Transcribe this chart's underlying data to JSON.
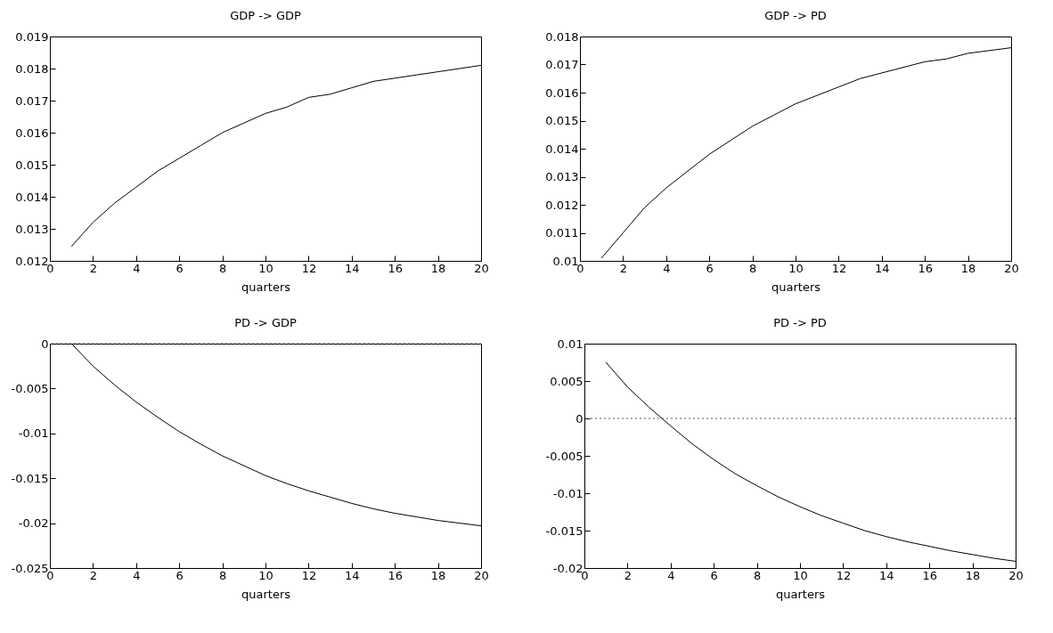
{
  "chart_data": [
    {
      "type": "line",
      "title": "GDP -> GDP",
      "xlabel": "quarters",
      "x": [
        1,
        2,
        3,
        4,
        5,
        6,
        7,
        8,
        9,
        10,
        11,
        12,
        13,
        14,
        15,
        16,
        17,
        18,
        19,
        20
      ],
      "series": [
        {
          "color": "#000000",
          "values": [
            0.01245,
            0.0132,
            0.0138,
            0.0143,
            0.0148,
            0.0152,
            0.0156,
            0.016,
            0.0163,
            0.0166,
            0.0168,
            0.0171,
            0.0172,
            0.0174,
            0.0176,
            0.0177,
            0.0178,
            0.0179,
            0.018,
            0.0181
          ]
        }
      ],
      "xlim": [
        0,
        20
      ],
      "xticks": [
        0,
        2,
        4,
        6,
        8,
        10,
        12,
        14,
        16,
        18,
        20
      ],
      "ylim": [
        0.012,
        0.019
      ],
      "yticks": [
        0.012,
        0.013,
        0.014,
        0.015,
        0.016,
        0.017,
        0.018,
        0.019
      ],
      "grid": false,
      "line_style": "solid"
    },
    {
      "type": "line",
      "title": "GDP -> PD",
      "xlabel": "quarters",
      "x": [
        1,
        2,
        3,
        4,
        5,
        6,
        7,
        8,
        9,
        10,
        11,
        12,
        13,
        14,
        15,
        16,
        17,
        18,
        19,
        20
      ],
      "series": [
        {
          "color": "#000000",
          "values": [
            0.0101,
            0.011,
            0.0119,
            0.0126,
            0.0132,
            0.0138,
            0.0143,
            0.0148,
            0.0152,
            0.0156,
            0.0159,
            0.0162,
            0.0165,
            0.0167,
            0.0169,
            0.0171,
            0.0172,
            0.0174,
            0.0175,
            0.0176
          ]
        }
      ],
      "xlim": [
        0,
        20
      ],
      "xticks": [
        0,
        2,
        4,
        6,
        8,
        10,
        12,
        14,
        16,
        18,
        20
      ],
      "ylim": [
        0.01,
        0.018
      ],
      "yticks": [
        0.01,
        0.011,
        0.012,
        0.013,
        0.014,
        0.015,
        0.016,
        0.017,
        0.018
      ],
      "grid": false,
      "line_style": "solid"
    },
    {
      "type": "line",
      "title": "PD -> GDP",
      "xlabel": "quarters",
      "x": [
        1,
        2,
        3,
        4,
        5,
        6,
        7,
        8,
        9,
        10,
        11,
        12,
        13,
        14,
        15,
        16,
        17,
        18,
        19,
        20
      ],
      "series": [
        {
          "color": "#000000",
          "values": [
            0,
            -0.0025,
            -0.0046,
            -0.0065,
            -0.0082,
            -0.0098,
            -0.0112,
            -0.0125,
            -0.0136,
            -0.0147,
            -0.0156,
            -0.0164,
            -0.0171,
            -0.0178,
            -0.0184,
            -0.0189,
            -0.0193,
            -0.0197,
            -0.02,
            -0.0203
          ]
        }
      ],
      "xlim": [
        0,
        20
      ],
      "xticks": [
        0,
        2,
        4,
        6,
        8,
        10,
        12,
        14,
        16,
        18,
        20
      ],
      "ylim": [
        -0.025,
        0
      ],
      "yticks": [
        -0.025,
        -0.02,
        -0.015,
        -0.01,
        -0.005,
        0
      ],
      "grid": false,
      "line_style": "solid",
      "ref_lines": [
        {
          "axis": "y",
          "value": 0,
          "color": "#555555",
          "line_style": "dotted"
        }
      ]
    },
    {
      "type": "line",
      "title": "PD -> PD",
      "xlabel": "quarters",
      "x": [
        1,
        2,
        3,
        4,
        5,
        6,
        7,
        8,
        9,
        10,
        11,
        12,
        13,
        14,
        15,
        16,
        17,
        18,
        19,
        20
      ],
      "series": [
        {
          "color": "#000000",
          "values": [
            0.0075,
            0.0042,
            0.0015,
            -0.001,
            -0.0034,
            -0.0055,
            -0.0074,
            -0.009,
            -0.0105,
            -0.0118,
            -0.013,
            -0.014,
            -0.015,
            -0.0158,
            -0.0165,
            -0.0171,
            -0.0177,
            -0.0182,
            -0.0187,
            -0.0191
          ]
        }
      ],
      "xlim": [
        0,
        20
      ],
      "xticks": [
        0,
        2,
        4,
        6,
        8,
        10,
        12,
        14,
        16,
        18,
        20
      ],
      "ylim": [
        -0.02,
        0.01
      ],
      "yticks": [
        -0.02,
        -0.015,
        -0.01,
        -0.005,
        0,
        0.005,
        0.01
      ],
      "grid": false,
      "line_style": "solid",
      "ref_lines": [
        {
          "axis": "y",
          "value": 0,
          "color": "#555555",
          "line_style": "dotted"
        }
      ]
    }
  ]
}
